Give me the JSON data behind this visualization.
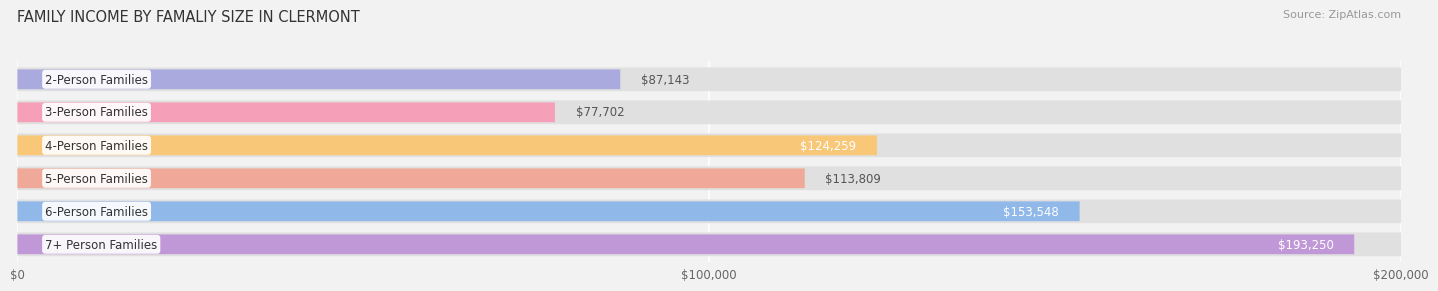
{
  "title": "FAMILY INCOME BY FAMALIY SIZE IN CLERMONT",
  "source": "Source: ZipAtlas.com",
  "categories": [
    "2-Person Families",
    "3-Person Families",
    "4-Person Families",
    "5-Person Families",
    "6-Person Families",
    "7+ Person Families"
  ],
  "values": [
    87143,
    77702,
    124259,
    113809,
    153548,
    193250
  ],
  "labels": [
    "$87,143",
    "$77,702",
    "$124,259",
    "$113,809",
    "$153,548",
    "$193,250"
  ],
  "bar_colors": [
    "#aaaade",
    "#f5a0b8",
    "#f8c878",
    "#f0a898",
    "#90b8e8",
    "#c098d8"
  ],
  "label_inside": [
    false,
    false,
    true,
    false,
    true,
    true
  ],
  "label_color_outside": "#555555",
  "label_color_inside": "#ffffff",
  "xlim": [
    0,
    200000
  ],
  "xticks": [
    0,
    100000,
    200000
  ],
  "xticklabels": [
    "$0",
    "$100,000",
    "$200,000"
  ],
  "background_color": "#f2f2f2",
  "bar_bg_color": "#e0e0e0",
  "title_fontsize": 10.5,
  "source_fontsize": 8,
  "label_fontsize": 8.5,
  "tick_fontsize": 8.5,
  "category_fontsize": 8.5
}
